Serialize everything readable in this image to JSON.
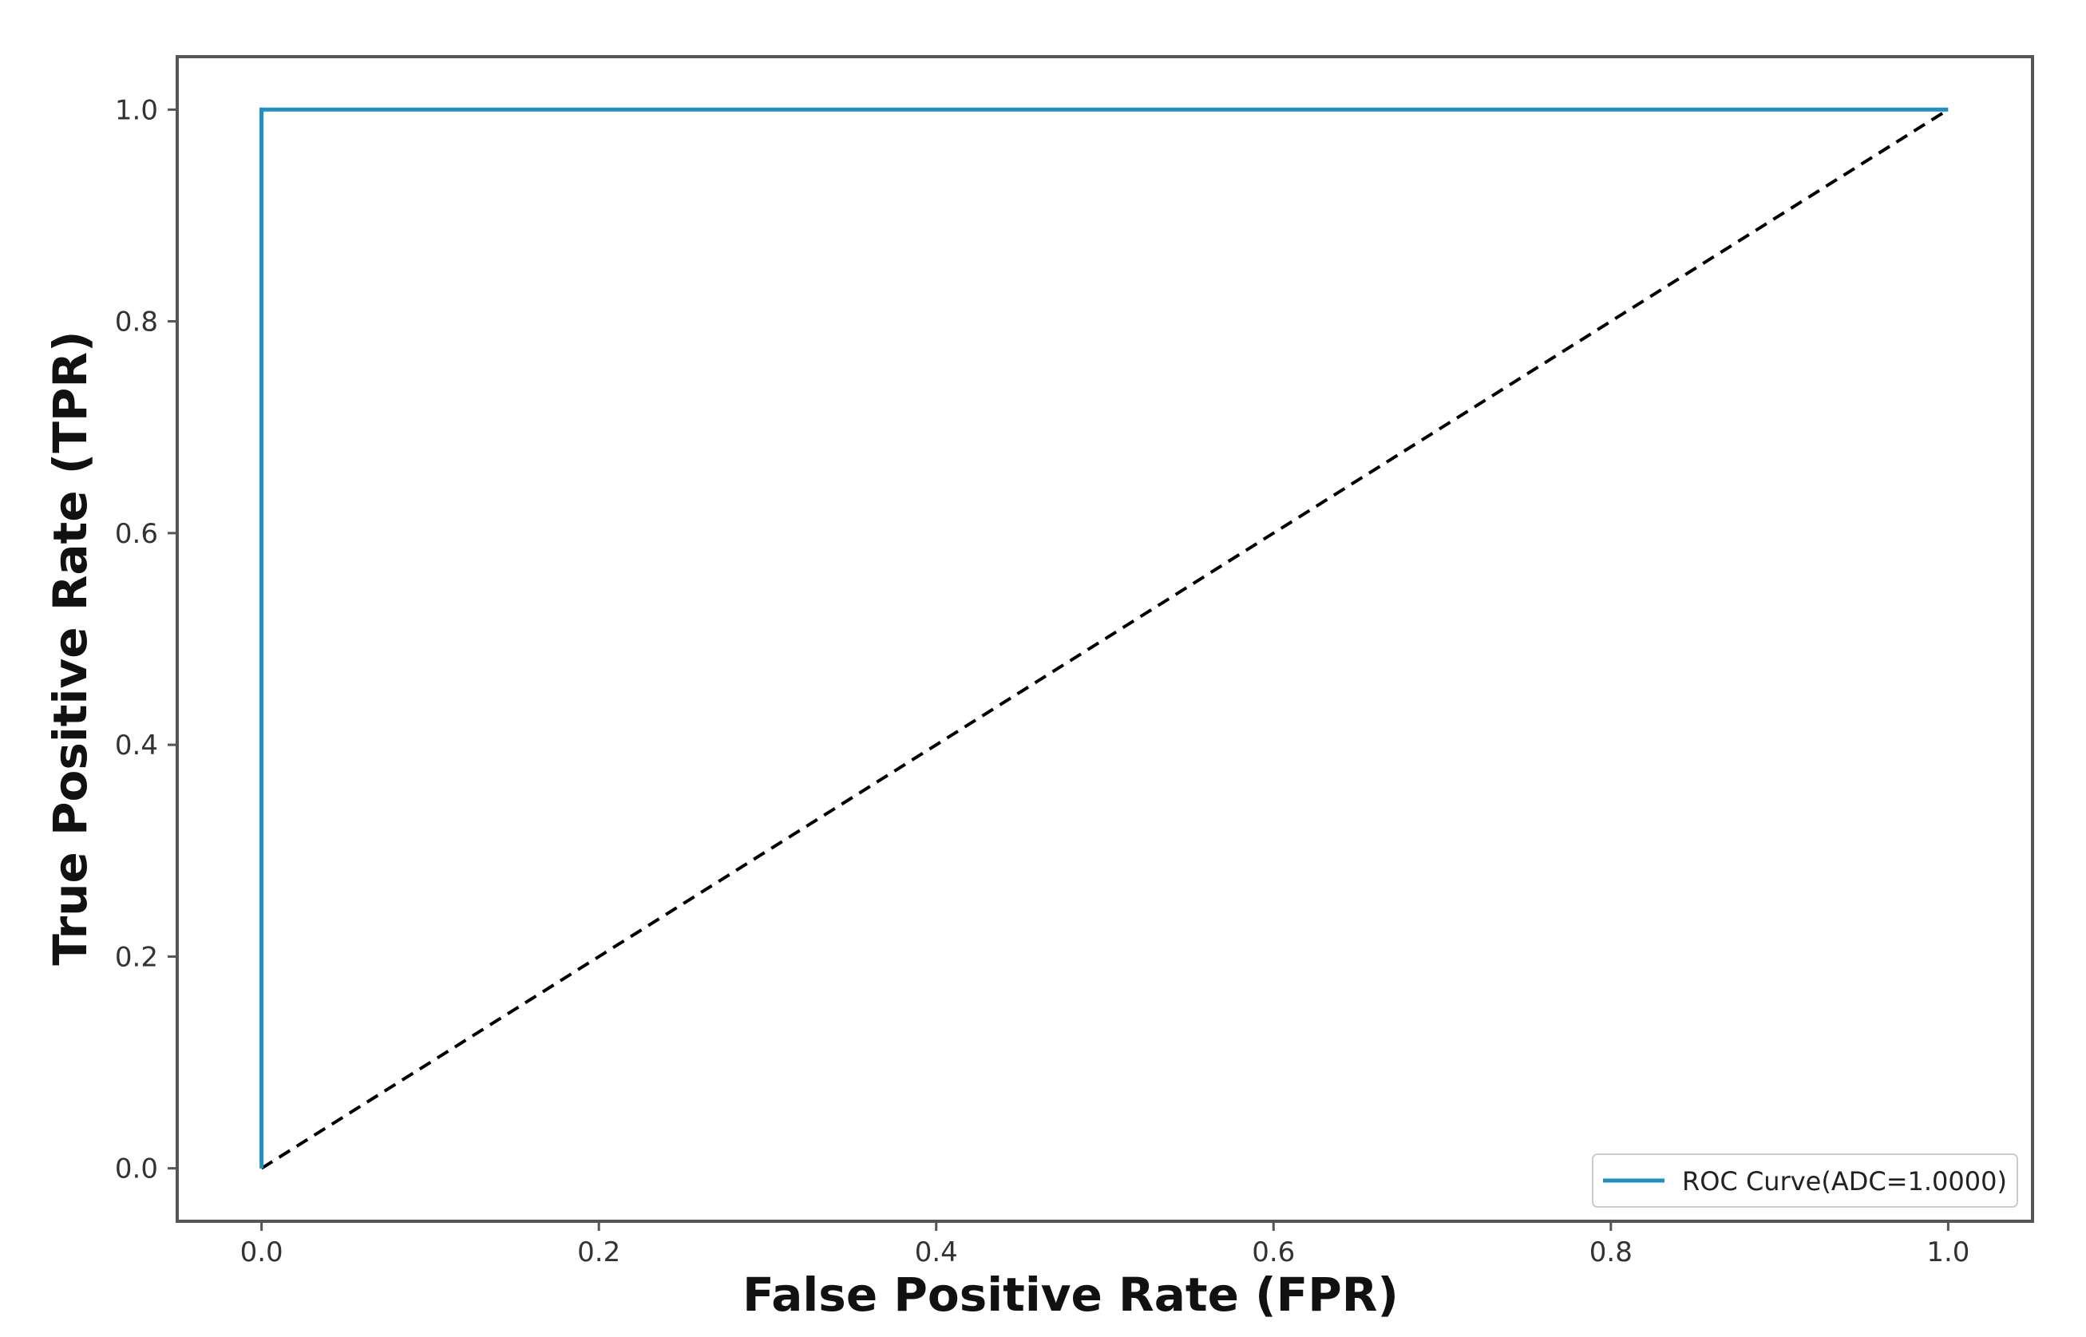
{
  "chart_data": {
    "type": "line",
    "title": "",
    "xlabel": "False Positive Rate (FPR)",
    "ylabel": "True Positive Rate (TPR)",
    "xlim": [
      -0.05,
      1.05
    ],
    "ylim": [
      -0.05,
      1.05
    ],
    "xticks": [
      0.0,
      0.2,
      0.4,
      0.6,
      0.8,
      1.0
    ],
    "xtick_labels": [
      "0.0",
      "0.2",
      "0.4",
      "0.6",
      "0.8",
      "1.0"
    ],
    "yticks": [
      0.0,
      0.2,
      0.4,
      0.6,
      0.8,
      1.0
    ],
    "ytick_labels": [
      "0.0",
      "0.2",
      "0.4",
      "0.6",
      "0.8",
      "1.0"
    ],
    "grid": false,
    "legend_position": "lower-right",
    "series": [
      {
        "name": "ROC Curve(ADC=1.0000)",
        "x": [
          0.0,
          0.0,
          1.0
        ],
        "y": [
          0.0,
          1.0,
          1.0
        ],
        "color": "#1f8fc4",
        "style": "solid"
      },
      {
        "x": [
          0.0,
          1.0
        ],
        "y": [
          0.0,
          1.0
        ],
        "color": "#000000",
        "style": "dashed"
      }
    ]
  }
}
